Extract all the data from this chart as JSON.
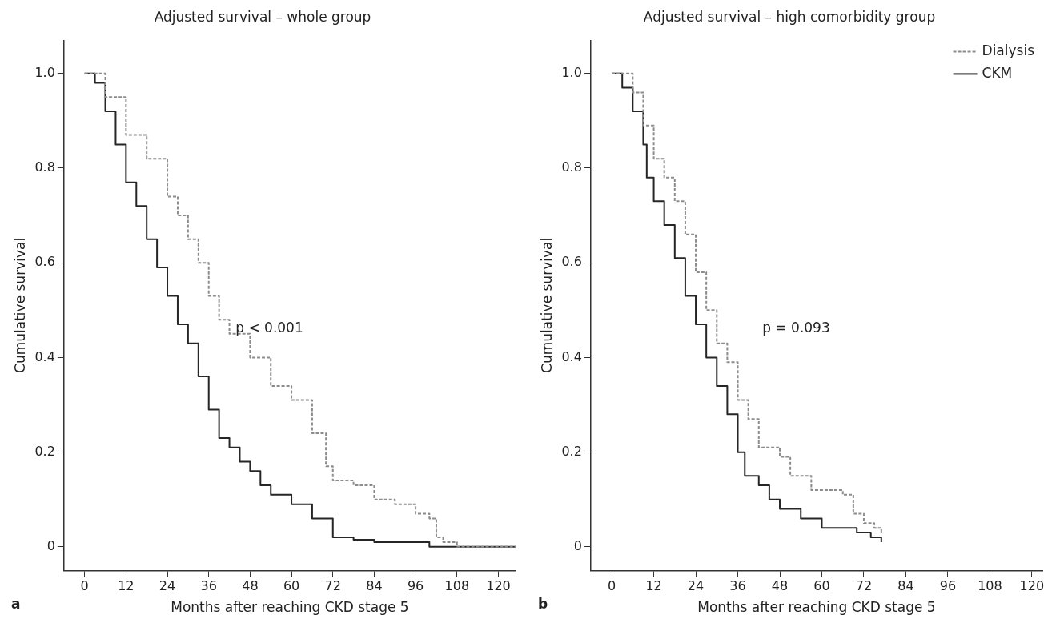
{
  "chart_data": [
    {
      "type": "step",
      "title": "Adjusted survival – whole group",
      "xlabel": "Months after reaching CKD stage 5",
      "ylabel": "Cumulative survival",
      "xlim": [
        -6,
        125
      ],
      "xticks": [
        0,
        12,
        24,
        36,
        48,
        60,
        72,
        84,
        96,
        108,
        120
      ],
      "ylim": [
        -0.05,
        1.07
      ],
      "yticks": [
        {
          "value": 0,
          "label": "0"
        },
        {
          "value": 0.2,
          "label": "0.2"
        },
        {
          "value": 0.4,
          "label": "0.4"
        },
        {
          "value": 0.6,
          "label": "0.6"
        },
        {
          "value": 0.8,
          "label": "0.8"
        },
        {
          "value": 1,
          "label": "1.0"
        }
      ],
      "grid": false,
      "legend": false,
      "annotations": [
        "p < 0.001",
        "a"
      ],
      "series": [
        {
          "color": "#8c8c8c",
          "line_style": "dashed",
          "x": [
            0,
            6,
            12,
            18,
            24,
            27,
            30,
            33,
            36,
            39,
            42,
            48,
            54,
            60,
            66,
            70,
            72,
            78,
            84,
            90,
            96,
            100,
            102,
            104,
            108,
            125
          ],
          "values": [
            1.0,
            0.95,
            0.87,
            0.82,
            0.74,
            0.7,
            0.65,
            0.6,
            0.53,
            0.48,
            0.45,
            0.4,
            0.34,
            0.31,
            0.24,
            0.17,
            0.14,
            0.13,
            0.1,
            0.09,
            0.07,
            0.06,
            0.02,
            0.01,
            0,
            0
          ]
        },
        {
          "color": "#262626",
          "line_style": "solid",
          "x": [
            0,
            3,
            6,
            9,
            12,
            15,
            18,
            21,
            24,
            27,
            30,
            33,
            36,
            39,
            42,
            45,
            48,
            51,
            54,
            60,
            66,
            72,
            78,
            84,
            96,
            100,
            125
          ],
          "values": [
            1.0,
            0.98,
            0.92,
            0.85,
            0.77,
            0.72,
            0.65,
            0.59,
            0.53,
            0.47,
            0.43,
            0.36,
            0.29,
            0.23,
            0.21,
            0.18,
            0.16,
            0.13,
            0.11,
            0.09,
            0.06,
            0.02,
            0.015,
            0.01,
            0.01,
            0,
            0
          ]
        }
      ]
    },
    {
      "type": "step",
      "title": "Adjusted survival – high comorbidity group",
      "xlabel": "Months after reaching CKD stage 5",
      "ylabel": "Cumulative survival",
      "xlim": [
        -6,
        123
      ],
      "xticks": [
        0,
        12,
        24,
        36,
        48,
        60,
        72,
        84,
        96,
        108,
        120
      ],
      "ylim": [
        -0.05,
        1.07
      ],
      "yticks": [
        {
          "value": 0,
          "label": "0"
        },
        {
          "value": 0.2,
          "label": "0.2"
        },
        {
          "value": 0.4,
          "label": "0.4"
        },
        {
          "value": 0.6,
          "label": "0.6"
        },
        {
          "value": 0.8,
          "label": "0.8"
        },
        {
          "value": 1,
          "label": "1.0"
        }
      ],
      "grid": false,
      "legend": "top right",
      "annotations": [
        "p = 0.093",
        "b"
      ],
      "series": [
        {
          "name": "Dialysis",
          "color": "#8c8c8c",
          "line_style": "dashed",
          "x": [
            0,
            6,
            9,
            12,
            15,
            18,
            21,
            24,
            27,
            30,
            33,
            36,
            39,
            42,
            48,
            51,
            57,
            66,
            69,
            72,
            75,
            77
          ],
          "values": [
            1.0,
            0.96,
            0.89,
            0.82,
            0.78,
            0.73,
            0.66,
            0.58,
            0.5,
            0.43,
            0.39,
            0.31,
            0.27,
            0.21,
            0.19,
            0.15,
            0.12,
            0.11,
            0.07,
            0.05,
            0.04,
            0.03
          ]
        },
        {
          "name": "CKM",
          "color": "#262626",
          "line_style": "solid",
          "x": [
            0,
            3,
            6,
            9,
            10,
            12,
            15,
            18,
            21,
            24,
            27,
            30,
            33,
            36,
            38,
            42,
            45,
            48,
            54,
            60,
            66,
            70,
            74,
            77
          ],
          "values": [
            1.0,
            0.97,
            0.92,
            0.85,
            0.78,
            0.73,
            0.68,
            0.61,
            0.53,
            0.47,
            0.4,
            0.34,
            0.28,
            0.2,
            0.15,
            0.13,
            0.1,
            0.08,
            0.06,
            0.04,
            0.04,
            0.03,
            0.02,
            0.01
          ]
        }
      ]
    }
  ]
}
